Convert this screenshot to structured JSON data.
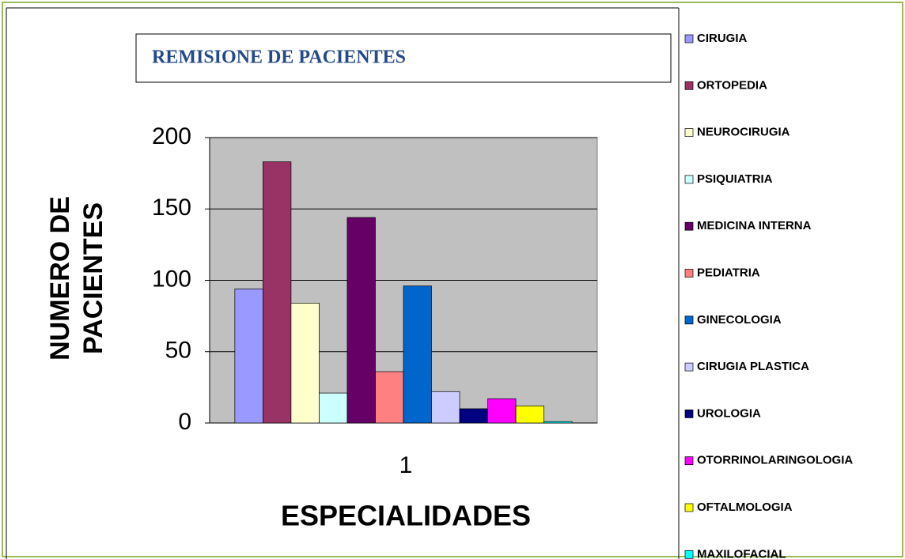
{
  "chart_data": {
    "type": "bar",
    "title": "REMISIONE DE PACIENTES",
    "xlabel": "ESPECIALIDADES",
    "ylabel": "NUMERO DE PACIENTES",
    "categories": [
      "1"
    ],
    "series": [
      {
        "name": "CIRUGIA",
        "color": "#9999ff",
        "values": [
          94
        ]
      },
      {
        "name": "ORTOPEDIA",
        "color": "#993366",
        "values": [
          183
        ]
      },
      {
        "name": "NEUROCIRUGIA",
        "color": "#ffffcc",
        "values": [
          84
        ]
      },
      {
        "name": "PSIQUIATRIA",
        "color": "#ccffff",
        "values": [
          21
        ]
      },
      {
        "name": "MEDICINA INTERNA",
        "color": "#660066",
        "values": [
          144
        ]
      },
      {
        "name": "PEDIATRIA",
        "color": "#ff8080",
        "values": [
          36
        ]
      },
      {
        "name": "GINECOLOGIA",
        "color": "#0066cc",
        "values": [
          96
        ]
      },
      {
        "name": "CIRUGIA PLASTICA",
        "color": "#ccccff",
        "values": [
          22
        ]
      },
      {
        "name": "UROLOGIA",
        "color": "#000080",
        "values": [
          10
        ]
      },
      {
        "name": "OTORRINOLARINGOLOGIA",
        "color": "#ff00ff",
        "values": [
          17
        ]
      },
      {
        "name": "OFTALMOLOGIA",
        "color": "#ffff00",
        "values": [
          12
        ]
      },
      {
        "name": "MAXILOFACIAL",
        "color": "#00ffff",
        "values": [
          1
        ]
      }
    ],
    "ylim": [
      0,
      200
    ],
    "yticks": [
      0,
      50,
      100,
      150,
      200
    ],
    "grid": true,
    "legend": "right"
  }
}
